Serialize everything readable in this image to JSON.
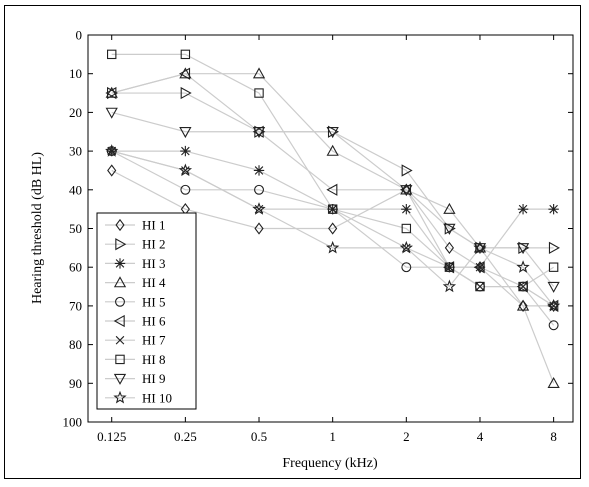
{
  "chart_data": {
    "type": "line",
    "title": "",
    "xlabel": "Frequency (kHz)",
    "ylabel": "Hearing threshold (dB HL)",
    "x_scale": "log",
    "y_reversed": true,
    "grid": false,
    "ylim": [
      0,
      100
    ],
    "y_ticks": [
      0,
      10,
      20,
      30,
      40,
      50,
      60,
      70,
      80,
      90,
      100
    ],
    "x": [
      0.125,
      0.25,
      0.5,
      1,
      2,
      3,
      4,
      6,
      8
    ],
    "x_tick_values": [
      0.125,
      0.25,
      0.5,
      1,
      2,
      4,
      8
    ],
    "x_tick_labels": [
      "0.125",
      "0.25",
      "0.5",
      "1",
      "2",
      "4",
      "8"
    ],
    "legend_placement": "bottom-left",
    "line_color": "#cccccc",
    "marker_color": "#222222",
    "series": [
      {
        "name": "HI 1",
        "marker": "diamond",
        "values": [
          35,
          45,
          50,
          50,
          40,
          55,
          60,
          70,
          70
        ]
      },
      {
        "name": "HI 2",
        "marker": "triangle-right",
        "values": [
          15,
          15,
          25,
          25,
          35,
          50,
          55,
          55,
          55
        ]
      },
      {
        "name": "HI 3",
        "marker": "asterisk",
        "values": [
          30,
          30,
          35,
          45,
          45,
          60,
          60,
          45,
          45
        ]
      },
      {
        "name": "HI 4",
        "marker": "triangle-up",
        "values": [
          15,
          10,
          10,
          30,
          40,
          45,
          55,
          70,
          90
        ]
      },
      {
        "name": "HI 5",
        "marker": "circle",
        "values": [
          30,
          40,
          40,
          45,
          60,
          60,
          65,
          65,
          75
        ]
      },
      {
        "name": "HI 6",
        "marker": "triangle-left",
        "values": [
          15,
          10,
          25,
          40,
          40,
          60,
          60,
          65,
          70
        ]
      },
      {
        "name": "HI 7",
        "marker": "x",
        "values": [
          30,
          35,
          45,
          45,
          55,
          60,
          65,
          65,
          70
        ]
      },
      {
        "name": "HI 8",
        "marker": "square",
        "values": [
          5,
          5,
          15,
          45,
          50,
          60,
          65,
          65,
          60
        ]
      },
      {
        "name": "HI 9",
        "marker": "triangle-down",
        "values": [
          20,
          25,
          25,
          25,
          40,
          50,
          55,
          55,
          65
        ]
      },
      {
        "name": "HI 10",
        "marker": "pentagram",
        "values": [
          30,
          35,
          45,
          55,
          55,
          65,
          55,
          60,
          70
        ]
      }
    ]
  }
}
